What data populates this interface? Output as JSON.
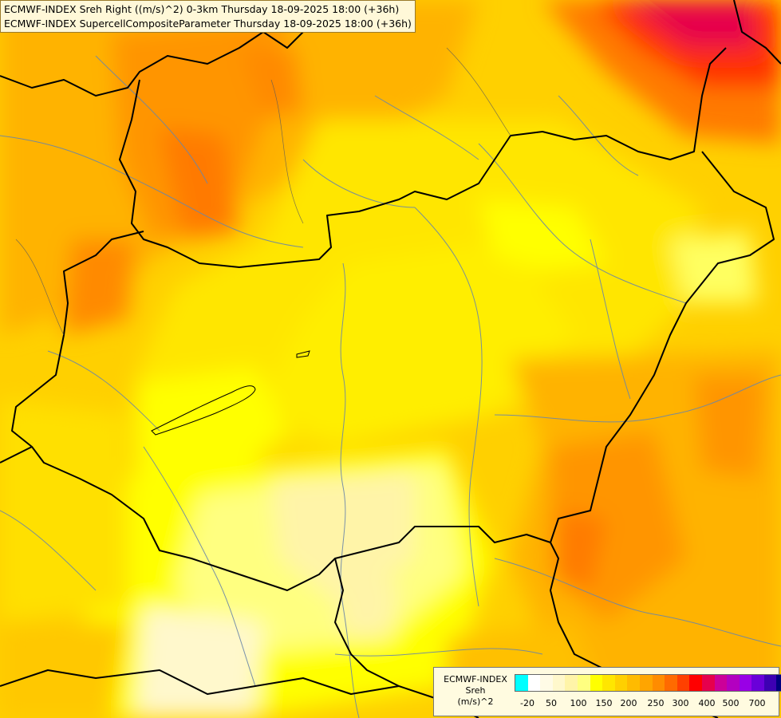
{
  "header": {
    "line1": "ECMWF-INDEX Sreh Right ((m/s)^2) 0-3km Thursday 18-09-2025 18:00 (+36h)",
    "line2": "ECMWF-INDEX SupercellCompositeParameter Thursday 18-09-2025 18:00 (+36h)"
  },
  "legend": {
    "line1": "ECMWF-INDEX",
    "line2": "Sreh",
    "line3": "(m/s)^2",
    "colors": [
      "#00ffff",
      "#ffffff",
      "#fffbe6",
      "#fff8cc",
      "#fff4a8",
      "#ffff80",
      "#ffff00",
      "#ffe600",
      "#ffd000",
      "#ffbb00",
      "#ffa500",
      "#ff8c00",
      "#ff6a00",
      "#ff4000",
      "#ff0000",
      "#e6004c",
      "#cc0099",
      "#b300c0",
      "#9900e6",
      "#6a00d9",
      "#3d00b3",
      "#000080"
    ],
    "ticks": [
      "-20",
      "50",
      "100",
      "150",
      "200",
      "250",
      "300",
      "400",
      "500",
      "700"
    ]
  }
}
